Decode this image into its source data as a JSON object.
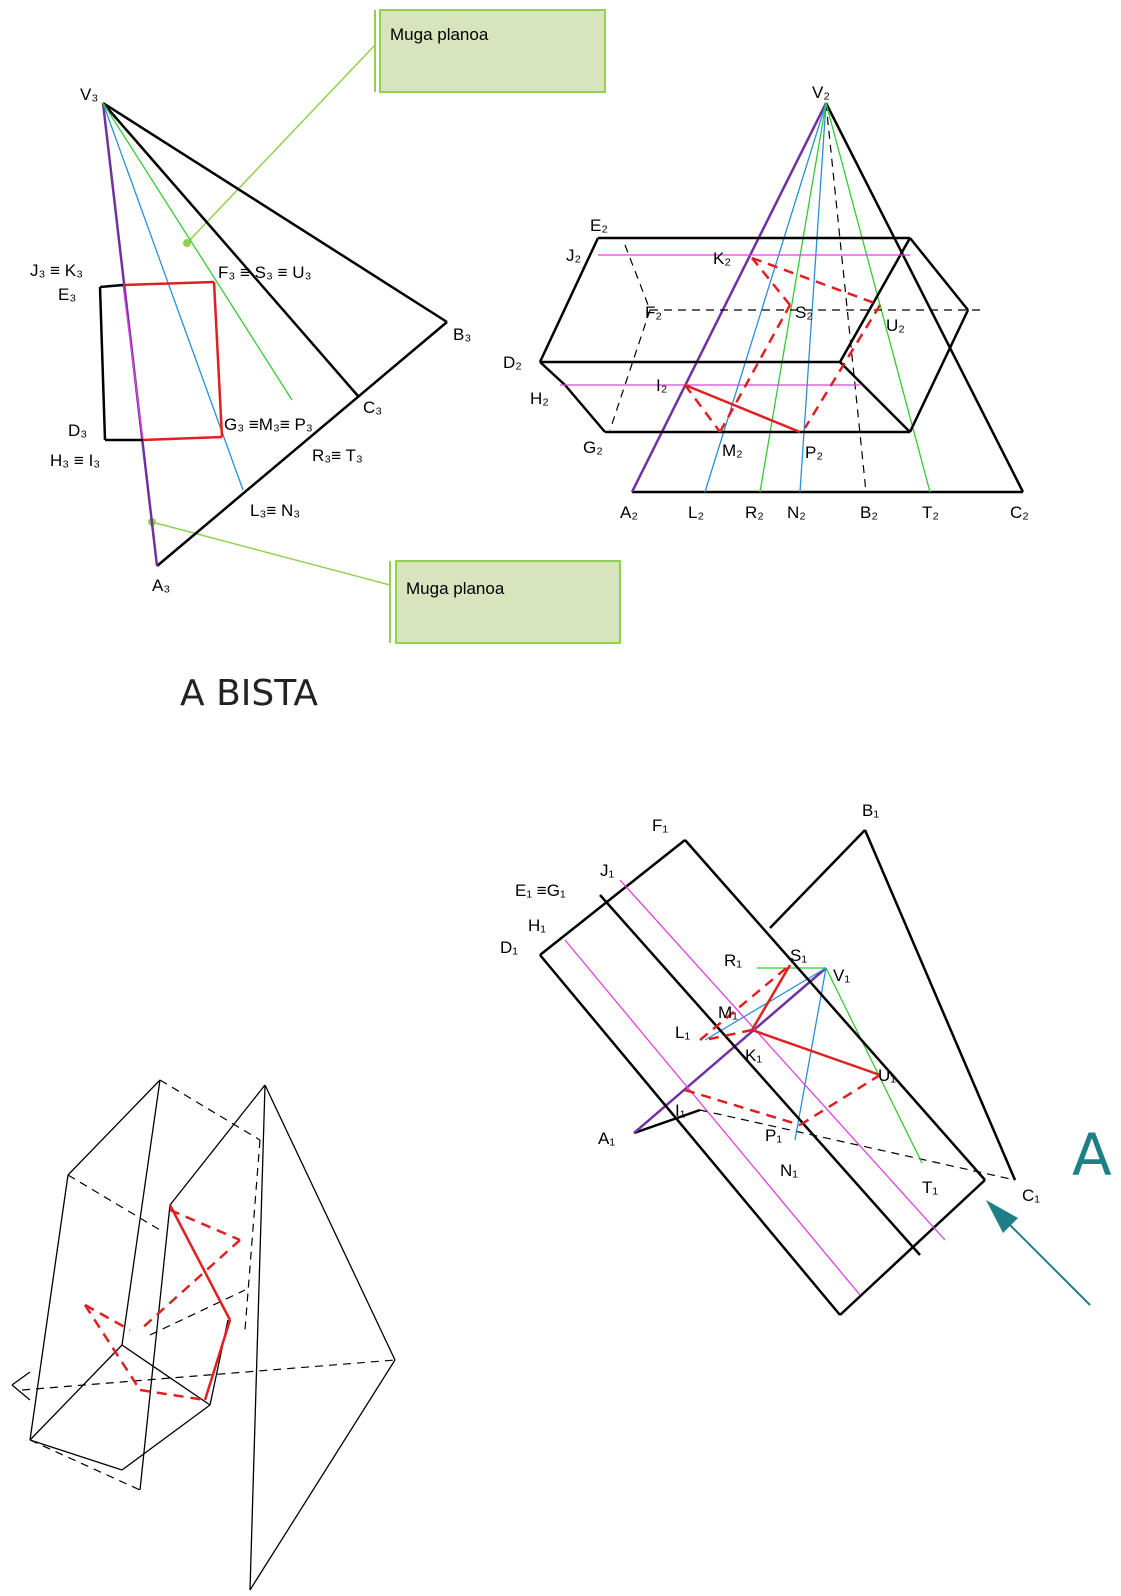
{
  "views": [
    {
      "labels": [
        "V₃",
        "J₃ ≡ K₃",
        "E₃",
        "F₃ ≡ S₃ ≡ U₃",
        "B₃",
        "D₃",
        "H₃ ≡  I₃",
        "G₃ ≡M₃≡ P₃",
        "C₃",
        "R₃≡ T₃",
        "L₃≡ N₃",
        "A₃"
      ]
    },
    {
      "labels": [
        "V₂",
        "E₂",
        "J₂",
        "K₂",
        "F₂",
        "S₂",
        "U₂",
        "D₂",
        "I₂",
        "H₂",
        "G₂",
        "M₂",
        "P₂",
        "A₂",
        "L₂",
        "R₂",
        "N₂",
        "B₂",
        "T₂",
        "C₂"
      ]
    },
    {
      "labels": [
        "B₁",
        "F₁",
        "J₁",
        "E₁ ≡G₁",
        "H₁",
        "D₁",
        "R₁",
        "S₁",
        "V₁",
        "M₁",
        "L₁",
        "K₁",
        "U₁",
        "I₁",
        "A₁",
        "P₁",
        "N₁",
        "T₁",
        "C₁"
      ]
    }
  ],
  "callouts": [
    "Muga planoa",
    "Muga planoa"
  ],
  "caption": "A BISTA",
  "arrow_label": "A"
}
